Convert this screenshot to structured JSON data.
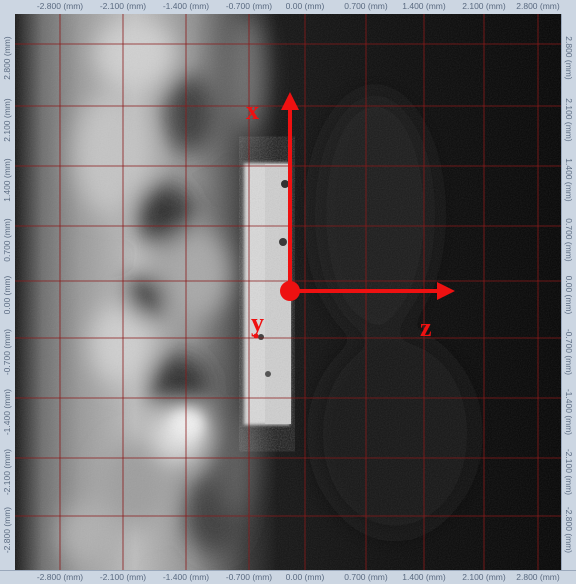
{
  "rulers": {
    "x_ticks": [
      "-2.800 (mm)",
      "-2.100 (mm)",
      "-1.400 (mm)",
      "-0.700 (mm)",
      "0.00 (mm)",
      "0.700 (mm)",
      "1.400 (mm)",
      "2.100 (mm)",
      "2.800 (mm)"
    ],
    "y_ticks": [
      "2.800 (mm)",
      "2.100 (mm)",
      "1.400 (mm)",
      "0.700 (mm)",
      "0.00 (mm)",
      "-0.700 (mm)",
      "-1.400 (mm)",
      "-2.100 (mm)",
      "-2.800 (mm)"
    ]
  },
  "overlay": {
    "axis_x_label": "x",
    "axis_y_label": "y",
    "axis_z_label": "z",
    "color": "#ee1111"
  },
  "grid": {
    "color": "#8b1a1a"
  }
}
